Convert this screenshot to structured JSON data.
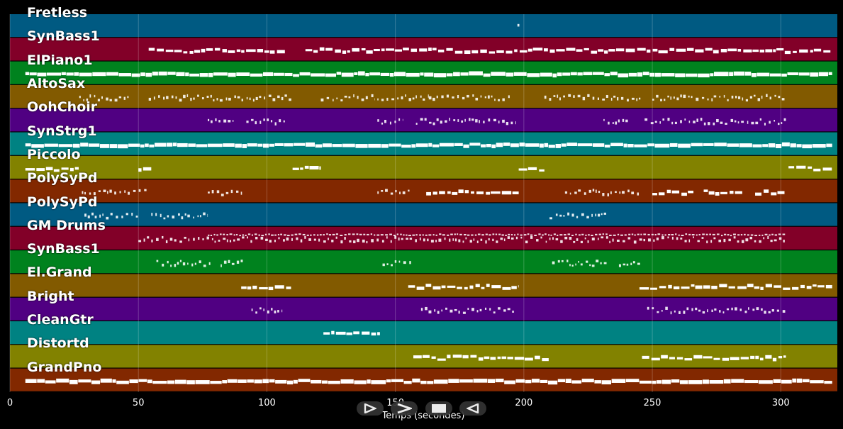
{
  "tracks": [
    {
      "name": "Fretless",
      "color": "#005a82"
    },
    {
      "name": "SynBass1",
      "color": "#820028"
    },
    {
      "name": "ElPiano1",
      "color": "#00821e"
    },
    {
      "name": "AltoSax",
      "color": "#825a00"
    },
    {
      "name": "OohChoir",
      "color": "#500082"
    },
    {
      "name": "SynStrg1",
      "color": "#008282"
    },
    {
      "name": "Piccolo",
      "color": "#828200"
    },
    {
      "name": "PolySyPd",
      "color": "#822800"
    },
    {
      "name": "PolySyPd",
      "color": "#005a82"
    },
    {
      "name": "GM Drums",
      "color": "#820028"
    },
    {
      "name": "SynBass1",
      "color": "#00821e"
    },
    {
      "name": "El.Grand",
      "color": "#825a00"
    },
    {
      "name": "Bright",
      "color": "#500082"
    },
    {
      "name": "CleanGtr",
      "color": "#008282"
    },
    {
      "name": "Distortd",
      "color": "#828200"
    },
    {
      "name": "GrandPno",
      "color": "#822800"
    }
  ],
  "axis": {
    "xlabel": "Temps (secondes)",
    "xlim": [
      0,
      322
    ],
    "ticks": [
      "0",
      "50",
      "100",
      "150",
      "200",
      "250",
      "300"
    ],
    "tick_values": [
      0,
      50,
      100,
      150,
      200,
      250,
      300
    ]
  },
  "activity": [
    [
      [
        197.5,
        198.5,
        "s"
      ]
    ],
    [
      [
        54,
        107,
        "m"
      ],
      [
        115,
        320,
        "m"
      ]
    ],
    [
      [
        6,
        320,
        "d"
      ]
    ],
    [
      [
        27,
        47,
        "s"
      ],
      [
        54,
        78,
        "s"
      ],
      [
        78,
        110,
        "s"
      ],
      [
        121,
        142,
        "s"
      ],
      [
        143,
        163,
        "s"
      ],
      [
        163,
        195,
        "s"
      ],
      [
        208,
        232,
        "s"
      ],
      [
        232,
        246,
        "s"
      ],
      [
        250,
        302,
        "s"
      ]
    ],
    [
      [
        77,
        87,
        "s"
      ],
      [
        92,
        107,
        "s"
      ],
      [
        143,
        153,
        "s"
      ],
      [
        158,
        197,
        "s"
      ],
      [
        231,
        241,
        "s"
      ],
      [
        247,
        302,
        "s"
      ]
    ],
    [
      [
        6,
        320,
        "d"
      ]
    ],
    [
      [
        6,
        27,
        "m"
      ],
      [
        50,
        55,
        "m"
      ],
      [
        110,
        121,
        "m"
      ],
      [
        198,
        208,
        "m"
      ],
      [
        303,
        320,
        "m"
      ]
    ],
    [
      [
        28,
        54,
        "s"
      ],
      [
        77,
        91,
        "s"
      ],
      [
        143,
        156,
        "s"
      ],
      [
        162,
        198,
        "m"
      ],
      [
        216,
        245,
        "s"
      ],
      [
        250,
        266,
        "m"
      ],
      [
        270,
        285,
        "m"
      ],
      [
        290,
        302,
        "m"
      ]
    ],
    [
      [
        29,
        50,
        "s"
      ],
      [
        55,
        77,
        "s"
      ],
      [
        210,
        233,
        "s"
      ]
    ],
    [
      [
        50,
        302,
        "s"
      ],
      [
        77,
        302,
        "s2"
      ]
    ],
    [
      [
        57,
        78,
        "s"
      ],
      [
        82,
        91,
        "s"
      ],
      [
        145,
        157,
        "s"
      ],
      [
        211,
        233,
        "s"
      ],
      [
        237,
        246,
        "s"
      ]
    ],
    [
      [
        90,
        110,
        "m"
      ],
      [
        155,
        198,
        "m"
      ],
      [
        245,
        320,
        "m"
      ]
    ],
    [
      [
        94,
        106,
        "s"
      ],
      [
        160,
        197,
        "s"
      ],
      [
        248,
        302,
        "s"
      ]
    ],
    [
      [
        122,
        144,
        "m"
      ]
    ],
    [
      [
        157,
        210,
        "m"
      ],
      [
        246,
        302,
        "m"
      ]
    ],
    [
      [
        6,
        320,
        "d"
      ]
    ]
  ]
}
